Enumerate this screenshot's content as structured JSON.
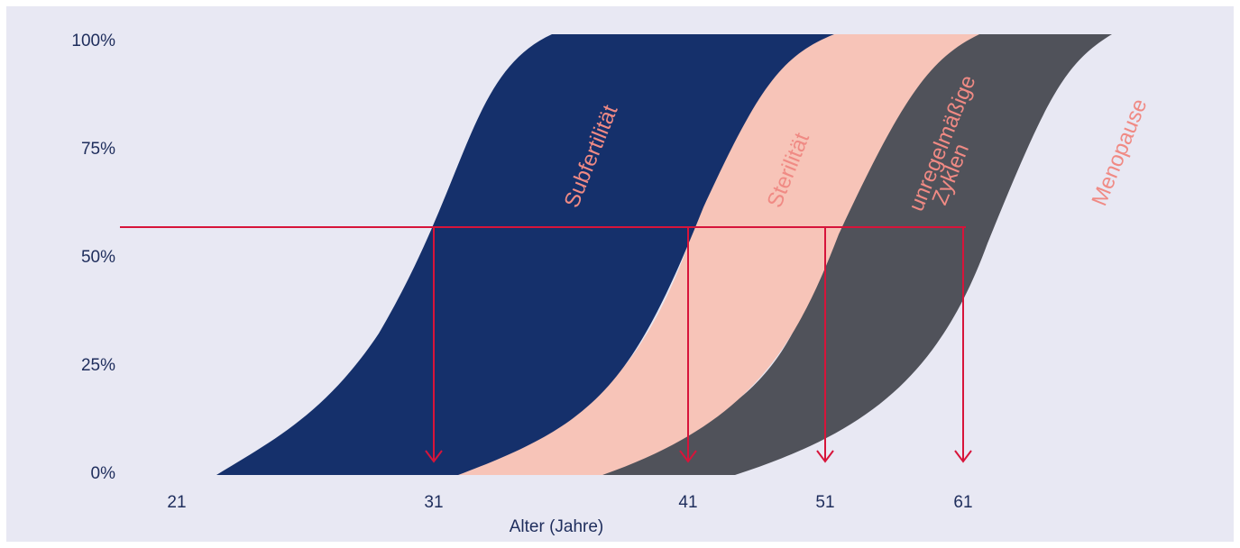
{
  "chart_data": {
    "type": "area",
    "xlabel": "Alter (Jahre)",
    "ylabel": "",
    "x_ticks": [
      21,
      31,
      41,
      51,
      61
    ],
    "y_ticks": [
      "0%",
      "25%",
      "50%",
      "75%",
      "100%"
    ],
    "ylim": [
      0,
      100
    ],
    "grid": false,
    "series": [
      {
        "name": "Subfertilität",
        "color": "#15306b"
      },
      {
        "name": "Sterilität",
        "color": "#f7c4b8"
      },
      {
        "name": "unregelmäßige Zyklen",
        "color": "#50525a"
      },
      {
        "name": "Menopause",
        "color": "#e8e8f3"
      }
    ],
    "marker_level_percent": 56,
    "marker_ages": [
      31,
      41,
      51,
      61
    ],
    "marker_color": "#d7143a"
  }
}
